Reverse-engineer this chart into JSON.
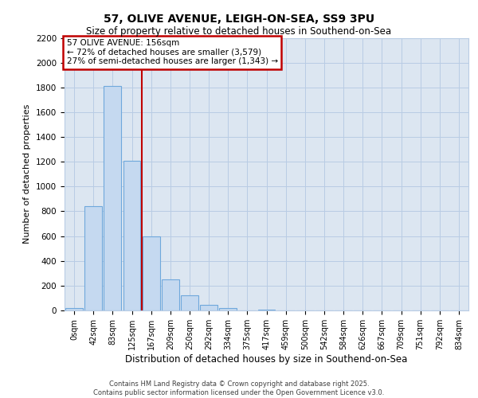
{
  "title1": "57, OLIVE AVENUE, LEIGH-ON-SEA, SS9 3PU",
  "title2": "Size of property relative to detached houses in Southend-on-Sea",
  "xlabel": "Distribution of detached houses by size in Southend-on-Sea",
  "ylabel": "Number of detached properties",
  "bar_labels": [
    "0sqm",
    "42sqm",
    "83sqm",
    "125sqm",
    "167sqm",
    "209sqm",
    "250sqm",
    "292sqm",
    "334sqm",
    "375sqm",
    "417sqm",
    "459sqm",
    "500sqm",
    "542sqm",
    "584sqm",
    "626sqm",
    "667sqm",
    "709sqm",
    "751sqm",
    "792sqm",
    "834sqm"
  ],
  "bar_values": [
    20,
    840,
    1810,
    1210,
    600,
    250,
    120,
    45,
    20,
    0,
    5,
    0,
    0,
    0,
    0,
    0,
    0,
    0,
    0,
    0,
    0
  ],
  "bar_color": "#c5d9f0",
  "bar_edge_color": "#6fa8dc",
  "annotation_box_text": "57 OLIVE AVENUE: 156sqm\n← 72% of detached houses are smaller (3,579)\n27% of semi-detached houses are larger (1,343) →",
  "vline_x": 3.5,
  "vline_color": "#c00000",
  "annotation_box_color": "#c00000",
  "grid_color": "#b8cce4",
  "bg_color": "#dce6f1",
  "footer_text": "Contains HM Land Registry data © Crown copyright and database right 2025.\nContains public sector information licensed under the Open Government Licence v3.0.",
  "ylim": [
    0,
    2200
  ],
  "yticks": [
    0,
    200,
    400,
    600,
    800,
    1000,
    1200,
    1400,
    1600,
    1800,
    2000,
    2200
  ]
}
